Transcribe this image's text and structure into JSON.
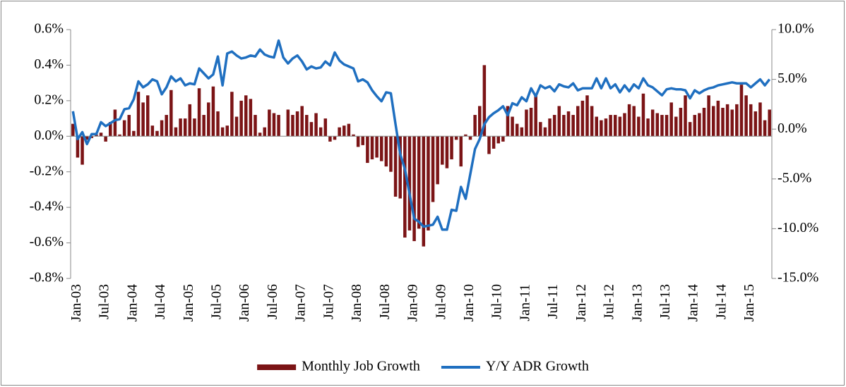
{
  "chart_data": {
    "type": "bar_line",
    "categories": [
      "Jan-03",
      null,
      null,
      null,
      null,
      null,
      "Jul-03",
      null,
      null,
      null,
      null,
      null,
      "Jan-04",
      null,
      null,
      null,
      null,
      null,
      "Jul-04",
      null,
      null,
      null,
      null,
      null,
      "Jan-05",
      null,
      null,
      null,
      null,
      null,
      "Jul-05",
      null,
      null,
      null,
      null,
      null,
      "Jan-06",
      null,
      null,
      null,
      null,
      null,
      "Jul-06",
      null,
      null,
      null,
      null,
      null,
      "Jan-07",
      null,
      null,
      null,
      null,
      null,
      "Jul-07",
      null,
      null,
      null,
      null,
      null,
      "Jan-08",
      null,
      null,
      null,
      null,
      null,
      "Jul-08",
      null,
      null,
      null,
      null,
      null,
      "Jan-09",
      null,
      null,
      null,
      null,
      null,
      "Jul-09",
      null,
      null,
      null,
      null,
      null,
      "Jan-10",
      null,
      null,
      null,
      null,
      null,
      "Jul-10",
      null,
      null,
      null,
      null,
      null,
      "Jan-11",
      null,
      null,
      null,
      null,
      null,
      "Jul-11",
      null,
      null,
      null,
      null,
      null,
      "Jan-12",
      null,
      null,
      null,
      null,
      null,
      "Jul-12",
      null,
      null,
      null,
      null,
      null,
      "Jan-13",
      null,
      null,
      null,
      null,
      null,
      "Jul-13",
      null,
      null,
      null,
      null,
      null,
      "Jan-14",
      null,
      null,
      null,
      null,
      null,
      "Jul-14",
      null,
      null,
      null,
      null,
      null,
      "Jan-15",
      null,
      null,
      null,
      null,
      null
    ],
    "series": [
      {
        "name": "Monthly Job Growth",
        "type": "bar",
        "color": "#7b1416",
        "values": [
          0.07,
          -0.12,
          -0.16,
          -0.02,
          -0.01,
          0.01,
          0.02,
          -0.03,
          0.08,
          0.15,
          0.01,
          0.09,
          0.12,
          0.03,
          0.25,
          0.19,
          0.23,
          0.06,
          0.03,
          0.09,
          0.12,
          0.26,
          0.05,
          0.1,
          0.1,
          0.18,
          0.1,
          0.27,
          0.12,
          0.19,
          0.28,
          0.14,
          0.05,
          0.06,
          0.25,
          0.11,
          0.2,
          0.23,
          0.21,
          0.12,
          0.02,
          0.05,
          0.15,
          0.13,
          0.12,
          0.0,
          0.15,
          0.12,
          0.14,
          0.17,
          0.12,
          0.08,
          0.13,
          0.05,
          0.1,
          -0.03,
          -0.02,
          0.05,
          0.06,
          0.07,
          0.01,
          -0.06,
          -0.05,
          -0.15,
          -0.13,
          -0.12,
          -0.14,
          -0.17,
          -0.2,
          -0.34,
          -0.35,
          -0.57,
          -0.53,
          -0.59,
          -0.52,
          -0.62,
          -0.53,
          -0.37,
          -0.27,
          -0.16,
          -0.18,
          -0.13,
          -0.02,
          -0.17,
          0.01,
          -0.02,
          0.12,
          0.17,
          0.4,
          -0.1,
          -0.07,
          -0.04,
          -0.03,
          0.17,
          0.11,
          0.07,
          0.05,
          0.15,
          0.16,
          0.23,
          0.08,
          0.05,
          0.1,
          0.12,
          0.17,
          0.12,
          0.14,
          0.12,
          0.17,
          0.2,
          0.23,
          0.17,
          0.11,
          0.09,
          0.1,
          0.12,
          0.12,
          0.11,
          0.13,
          0.18,
          0.17,
          0.11,
          0.24,
          0.1,
          0.15,
          0.13,
          0.12,
          0.12,
          0.19,
          0.11,
          0.16,
          0.23,
          0.08,
          0.12,
          0.13,
          0.16,
          0.23,
          0.17,
          0.2,
          0.16,
          0.18,
          0.15,
          0.18,
          0.29,
          0.23,
          0.18,
          0.14,
          0.19,
          0.09,
          0.15
        ]
      },
      {
        "name": "Y/Y ADR Growth",
        "type": "line",
        "axis": "y2",
        "color": "#1f6fc0",
        "values": [
          1.8,
          -1.0,
          -0.3,
          -1.5,
          -0.5,
          -0.5,
          0.7,
          0.3,
          0.6,
          0.9,
          1.0,
          2.0,
          2.1,
          3.0,
          4.8,
          4.2,
          4.5,
          5.0,
          4.8,
          3.5,
          4.2,
          5.3,
          4.8,
          5.1,
          4.4,
          4.6,
          4.5,
          6.1,
          5.6,
          5.1,
          5.5,
          7.3,
          4.4,
          7.6,
          7.8,
          7.4,
          7.1,
          7.2,
          7.4,
          7.3,
          8.0,
          7.5,
          7.3,
          7.2,
          8.9,
          7.2,
          6.6,
          7.1,
          7.4,
          6.8,
          6.0,
          6.3,
          6.1,
          6.2,
          6.8,
          6.4,
          7.7,
          6.9,
          6.5,
          6.3,
          6.1,
          4.8,
          5.0,
          4.7,
          3.9,
          3.3,
          2.8,
          3.7,
          3.6,
          0.5,
          -2.5,
          -4.0,
          -6.5,
          -9.0,
          -9.3,
          -9.8,
          -9.7,
          -9.6,
          -8.8,
          -10.1,
          -10.1,
          -8.1,
          -8.2,
          -5.8,
          -7.0,
          -4.5,
          -2.0,
          -1.0,
          0.5,
          1.2,
          1.6,
          1.9,
          2.3,
          1.4,
          2.6,
          2.4,
          3.2,
          2.8,
          4.1,
          3.3,
          4.4,
          4.1,
          4.3,
          3.8,
          4.5,
          4.3,
          4.2,
          4.6,
          3.9,
          4.1,
          4.1,
          4.1,
          5.1,
          4.1,
          5.1,
          4.1,
          4.5,
          3.7,
          4.4,
          3.8,
          4.5,
          4.1,
          5.1,
          4.4,
          4.2,
          3.8,
          3.4,
          4.0,
          4.1,
          4.0,
          4.0,
          3.9,
          3.1,
          3.9,
          3.6,
          3.9,
          4.1,
          4.2,
          4.4,
          4.5,
          4.6,
          4.7,
          4.6,
          4.6,
          4.6,
          4.2,
          4.6,
          5.0,
          4.4,
          5.0
        ]
      }
    ],
    "ylim": [
      -0.8,
      0.6
    ],
    "yticks": [
      {
        "value": -0.8,
        "label": "-0.8%"
      },
      {
        "value": -0.6,
        "label": "-0.6%"
      },
      {
        "value": -0.4,
        "label": "-0.4%"
      },
      {
        "value": -0.2,
        "label": "-0.2%"
      },
      {
        "value": 0,
        "label": "0.0%"
      },
      {
        "value": 0.2,
        "label": "0.2%"
      },
      {
        "value": 0.4,
        "label": "0.4%"
      },
      {
        "value": 0.6,
        "label": "0.6%"
      }
    ],
    "y2lim": [
      -15,
      10
    ],
    "y2ticks": [
      {
        "value": -15,
        "label": "-15.0%"
      },
      {
        "value": -10,
        "label": "-10.0%"
      },
      {
        "value": -5,
        "label": "-5.0%"
      },
      {
        "value": 0,
        "label": "0.0%"
      },
      {
        "value": 5,
        "label": "5.0%"
      },
      {
        "value": 10,
        "label": "10.0%"
      }
    ],
    "legend": "bottom"
  }
}
